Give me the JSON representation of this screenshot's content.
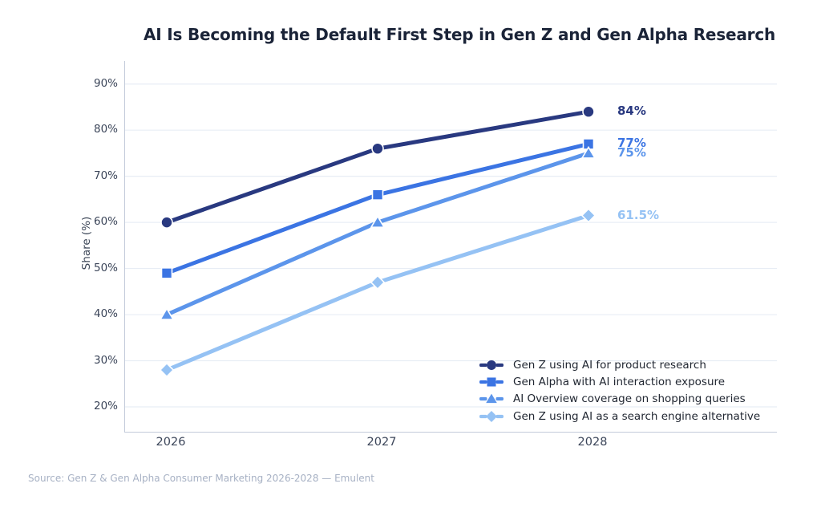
{
  "source": "Source: Gen Z & Gen Alpha Consumer Marketing 2026-2028 — Emulent",
  "chart_data": {
    "type": "line",
    "title": "AI Is Becoming the Default First Step in Gen Z and Gen Alpha Research",
    "xlabel": "",
    "ylabel": "Share (%)",
    "categories": [
      "2026",
      "2027",
      "2028"
    ],
    "yticks": [
      "20%",
      "30%",
      "40%",
      "50%",
      "60%",
      "70%",
      "80%",
      "90%"
    ],
    "ytick_values": [
      20,
      30,
      40,
      50,
      60,
      70,
      80,
      90
    ],
    "ylim": [
      14.6,
      95
    ],
    "grid": true,
    "legend_position": "lower right",
    "series": [
      {
        "name": "Gen Z using AI for product research",
        "marker": "circle",
        "color": "#293980",
        "values": [
          60,
          76,
          84
        ],
        "end_label": "84%"
      },
      {
        "name": "Gen Alpha with AI interaction exposure",
        "marker": "square",
        "color": "#3B74E3",
        "values": [
          49,
          66,
          77
        ],
        "end_label": "77%"
      },
      {
        "name": "AI Overview coverage on shopping queries",
        "marker": "triangle",
        "color": "#5C95EB",
        "values": [
          40,
          60,
          75
        ],
        "end_label": "75%"
      },
      {
        "name": "Gen Z using AI as a search engine alternative",
        "marker": "diamond",
        "color": "#95C2F4",
        "values": [
          28,
          47,
          61.5
        ],
        "end_label": "61.5%"
      }
    ]
  }
}
